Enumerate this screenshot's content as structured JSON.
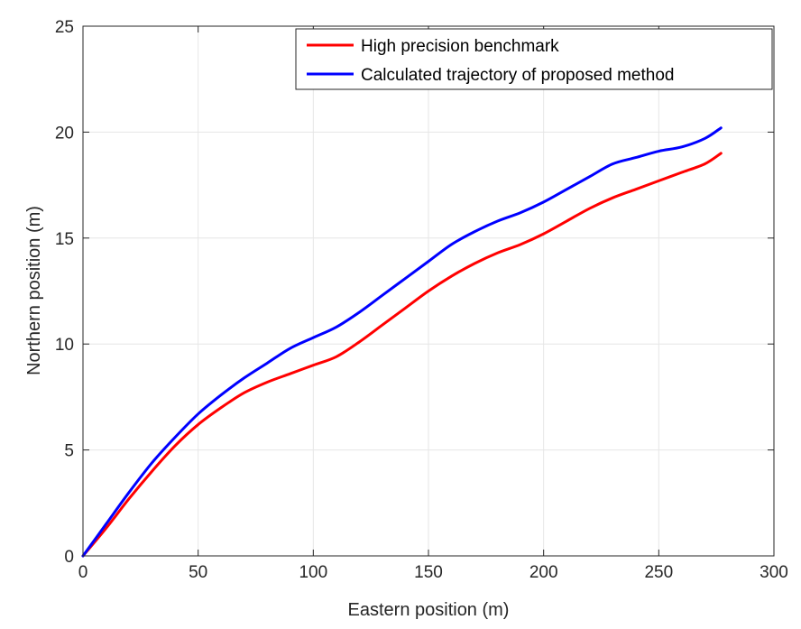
{
  "chart_data": {
    "type": "line",
    "title": "",
    "xlabel": "Eastern position (m)",
    "ylabel": "Northern position (m)",
    "xlim": [
      0,
      300
    ],
    "ylim": [
      0,
      25
    ],
    "xticks": [
      0,
      50,
      100,
      150,
      200,
      250,
      300
    ],
    "yticks": [
      0,
      5,
      10,
      15,
      20,
      25
    ],
    "xtick_labels": [
      "0",
      "50",
      "100",
      "150",
      "200",
      "250",
      "300"
    ],
    "ytick_labels": [
      "0",
      "5",
      "10",
      "15",
      "20",
      "25"
    ],
    "grid": true,
    "legend_position": "top-right",
    "series": [
      {
        "name": "High precision benchmark",
        "color": "#ff0000",
        "x": [
          0,
          10,
          20,
          30,
          40,
          50,
          60,
          70,
          80,
          90,
          100,
          110,
          120,
          130,
          140,
          150,
          160,
          170,
          180,
          190,
          200,
          210,
          220,
          230,
          240,
          250,
          260,
          270,
          277
        ],
        "y": [
          0,
          1.3,
          2.7,
          4.0,
          5.2,
          6.2,
          7.0,
          7.7,
          8.2,
          8.6,
          9.0,
          9.4,
          10.1,
          10.9,
          11.7,
          12.5,
          13.2,
          13.8,
          14.3,
          14.7,
          15.2,
          15.8,
          16.4,
          16.9,
          17.3,
          17.7,
          18.1,
          18.5,
          19.0
        ]
      },
      {
        "name": "Calculated trajectory of proposed method",
        "color": "#0000ff",
        "x": [
          0,
          10,
          20,
          30,
          40,
          50,
          60,
          70,
          80,
          90,
          100,
          110,
          120,
          130,
          140,
          150,
          160,
          170,
          180,
          190,
          200,
          210,
          220,
          230,
          240,
          250,
          260,
          270,
          277
        ],
        "y": [
          0,
          1.5,
          3.0,
          4.4,
          5.6,
          6.7,
          7.6,
          8.4,
          9.1,
          9.8,
          10.3,
          10.8,
          11.5,
          12.3,
          13.1,
          13.9,
          14.7,
          15.3,
          15.8,
          16.2,
          16.7,
          17.3,
          17.9,
          18.5,
          18.8,
          19.1,
          19.3,
          19.7,
          20.2
        ]
      }
    ]
  }
}
